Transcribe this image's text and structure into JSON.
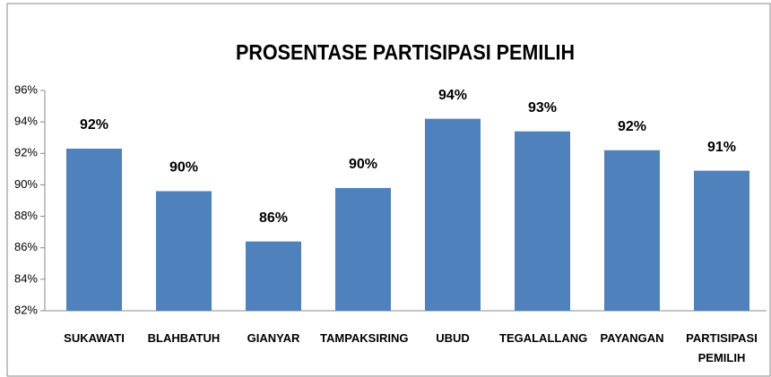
{
  "chart_data": {
    "type": "bar",
    "title": "PROSENTASE PARTISIPASI PEMILIH",
    "categories": [
      "SUKAWATI",
      "BLAHBATUH",
      "GIANYAR",
      "TAMPAKSIRING",
      "UBUD",
      "TEGALALLANG",
      "PAYANGAN",
      "PARTISIPASI PEMILIH"
    ],
    "values": [
      92.3,
      89.6,
      86.4,
      89.8,
      94.2,
      93.4,
      92.2,
      90.9
    ],
    "value_labels": [
      "92%",
      "90%",
      "86%",
      "90%",
      "94%",
      "93%",
      "92%",
      "91%"
    ],
    "color": "#4f81bd",
    "ylim": [
      82,
      96
    ],
    "yticks": [
      {
        "value": 82,
        "label": "82%"
      },
      {
        "value": 84,
        "label": "84%"
      },
      {
        "value": 86,
        "label": "86%"
      },
      {
        "value": 88,
        "label": "88%"
      },
      {
        "value": 90,
        "label": "90%"
      },
      {
        "value": 92,
        "label": "92%"
      },
      {
        "value": 94,
        "label": "94%"
      },
      {
        "value": 96,
        "label": "96%"
      }
    ],
    "grid": false
  }
}
